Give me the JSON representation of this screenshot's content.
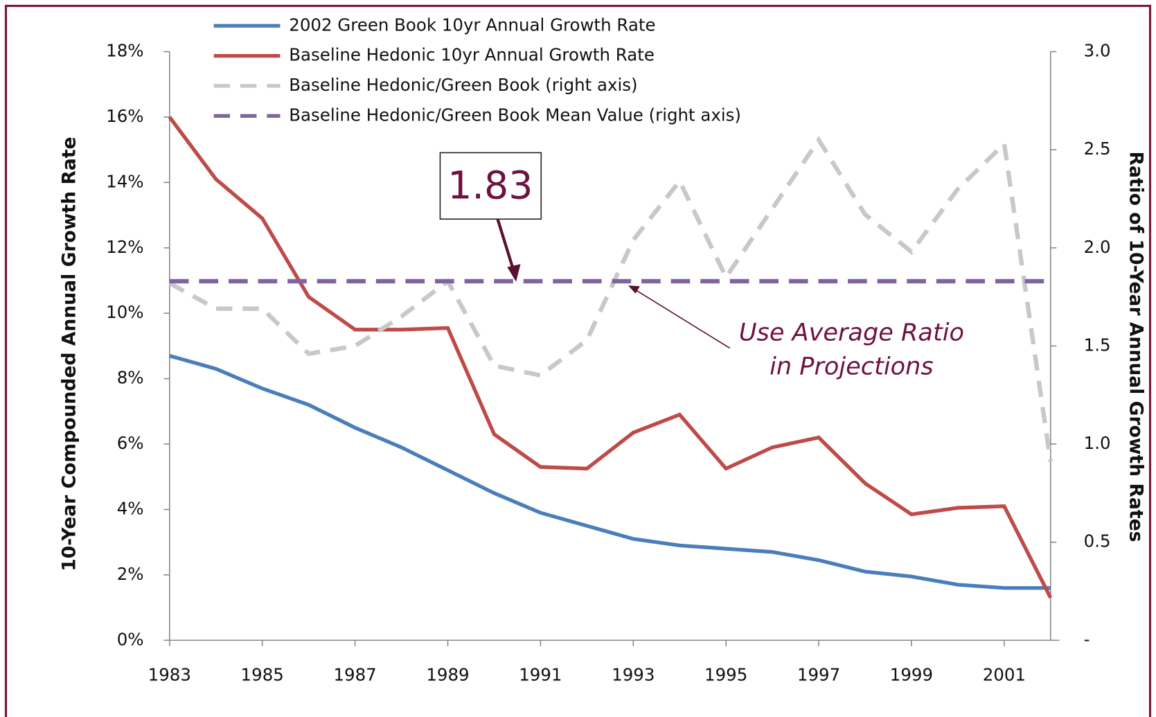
{
  "chart_data": {
    "type": "line",
    "y_label": "10-Year Compounded Annual Growth Rate",
    "y2_label": "Ratio of 10-Year Annual Growth Rates",
    "x": [
      1983,
      1984,
      1985,
      1986,
      1987,
      1988,
      1989,
      1990,
      1991,
      1992,
      1993,
      1994,
      1995,
      1996,
      1997,
      1998,
      1999,
      2000,
      2001,
      2002
    ],
    "xlim": [
      1983,
      2002
    ],
    "xticks": [
      1983,
      1985,
      1987,
      1989,
      1991,
      1993,
      1995,
      1997,
      1999,
      2001
    ],
    "ylim": [
      0,
      18
    ],
    "yticks": [
      {
        "value": 0,
        "label": "0%"
      },
      {
        "value": 2,
        "label": "2%"
      },
      {
        "value": 4,
        "label": "4%"
      },
      {
        "value": 6,
        "label": "6%"
      },
      {
        "value": 8,
        "label": "8%"
      },
      {
        "value": 10,
        "label": "10%"
      },
      {
        "value": 12,
        "label": "12%"
      },
      {
        "value": 14,
        "label": "14%"
      },
      {
        "value": 16,
        "label": "16%"
      },
      {
        "value": 18,
        "label": "18%"
      }
    ],
    "y2lim": [
      0,
      3
    ],
    "y2ticks": [
      {
        "value": 0,
        "label": "-"
      },
      0.5,
      {
        "value": 1,
        "label": "1.0"
      },
      1.5,
      {
        "value": 2,
        "label": "2.0"
      },
      2.5,
      {
        "value": 3,
        "label": "3.0"
      }
    ],
    "series": [
      {
        "name": "2002 Green Book 10yr Annual Growth Rate",
        "color": "#4a7ebb",
        "line_style": "solid",
        "values": [
          8.7,
          8.3,
          7.7,
          7.2,
          6.5,
          5.9,
          5.2,
          4.5,
          3.9,
          3.5,
          3.1,
          2.9,
          2.8,
          2.7,
          2.45,
          2.1,
          1.95,
          1.7,
          1.6,
          1.6
        ]
      },
      {
        "name": "Baseline Hedonic 10yr Annual Growth Rate",
        "color": "#be4b48",
        "line_style": "solid",
        "values": [
          16.0,
          14.1,
          12.9,
          10.5,
          9.5,
          9.5,
          9.55,
          6.3,
          5.3,
          5.25,
          6.35,
          6.9,
          5.25,
          5.9,
          6.2,
          4.8,
          3.85,
          4.05,
          4.1,
          1.3
        ]
      },
      {
        "name": "Baseline Hedonic/Green Book (right axis)",
        "color": "#c8c8c8",
        "line_style": "dashed",
        "axis": "y2",
        "values": [
          1.82,
          1.69,
          1.69,
          1.46,
          1.5,
          1.65,
          1.83,
          1.4,
          1.35,
          1.53,
          2.04,
          2.34,
          1.85,
          2.2,
          2.55,
          2.17,
          1.98,
          2.3,
          2.53,
          0.91
        ]
      },
      {
        "name": "Baseline Hedonic/Green Book Mean Value (right axis)",
        "color": "#8064a2",
        "line_style": "dashed",
        "axis": "y2",
        "values": [
          1.83,
          1.83,
          1.83,
          1.83,
          1.83,
          1.83,
          1.83,
          1.83,
          1.83,
          1.83,
          1.83,
          1.83,
          1.83,
          1.83,
          1.83,
          1.83,
          1.83,
          1.83,
          1.83,
          1.83
        ]
      }
    ],
    "annotations": [
      {
        "text": "1.83"
      },
      {
        "text": [
          "Use Average Ratio",
          "in Projections"
        ]
      }
    ]
  }
}
